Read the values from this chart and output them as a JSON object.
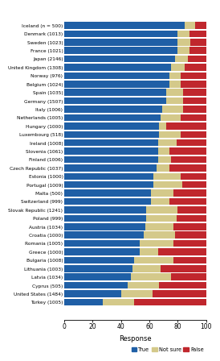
{
  "countries": [
    "Iceland (n = 500)",
    "Denmark (1013)",
    "Sweden (1023)",
    "France (1021)",
    "Japan (2146)",
    "United Kingdom (1308)",
    "Norway (976)",
    "Belgium (1024)",
    "Spain (1035)",
    "Germany (1507)",
    "Italy (1006)",
    "Netherlands (1005)",
    "Hungary (1000)",
    "Luxembourg (518)",
    "Ireland (1008)",
    "Slovenia (1061)",
    "Finland (1006)",
    "Czech Republic (1037)",
    "Estonia (1000)",
    "Portugal (1009)",
    "Malta (500)",
    "Switzerland (999)",
    "Slovak Republic (1241)",
    "Poland (999)",
    "Austria (1034)",
    "Croatia (1000)",
    "Romania (1005)",
    "Greece (1000)",
    "Bulgaria (1008)",
    "Lithuania (1003)",
    "Latvia (1034)",
    "Cyprus (505)",
    "United States (1484)",
    "Turkey (1005)"
  ],
  "true_vals": [
    85,
    80,
    80,
    80,
    78,
    75,
    74,
    74,
    72,
    72,
    69,
    68,
    67,
    67,
    66,
    66,
    66,
    65,
    63,
    63,
    61,
    61,
    58,
    58,
    57,
    56,
    53,
    53,
    49,
    48,
    47,
    45,
    40,
    27
  ],
  "not_sure_vals": [
    7,
    8,
    9,
    8,
    9,
    10,
    8,
    8,
    12,
    12,
    15,
    14,
    5,
    15,
    13,
    8,
    9,
    9,
    19,
    20,
    16,
    13,
    22,
    21,
    20,
    22,
    24,
    13,
    28,
    20,
    28,
    22,
    22,
    22
  ],
  "false_vals": [
    8,
    12,
    11,
    12,
    13,
    15,
    18,
    18,
    16,
    16,
    16,
    18,
    28,
    18,
    21,
    26,
    25,
    26,
    18,
    17,
    23,
    26,
    20,
    21,
    23,
    22,
    23,
    34,
    23,
    32,
    25,
    33,
    38,
    51
  ],
  "true_color": "#1F5FA6",
  "not_sure_color": "#D4C98A",
  "false_color": "#C0272D",
  "xlabel": "Response",
  "xlim": [
    0,
    100
  ],
  "xticks": [
    0,
    20,
    40,
    60,
    80,
    100
  ],
  "legend_labels": [
    "True",
    "Not sure",
    "False"
  ],
  "bar_height": 0.82,
  "background_color": "#FFFFFF",
  "label_fontsize": 4.2,
  "xlabel_fontsize": 6.0,
  "xtick_fontsize": 5.5
}
